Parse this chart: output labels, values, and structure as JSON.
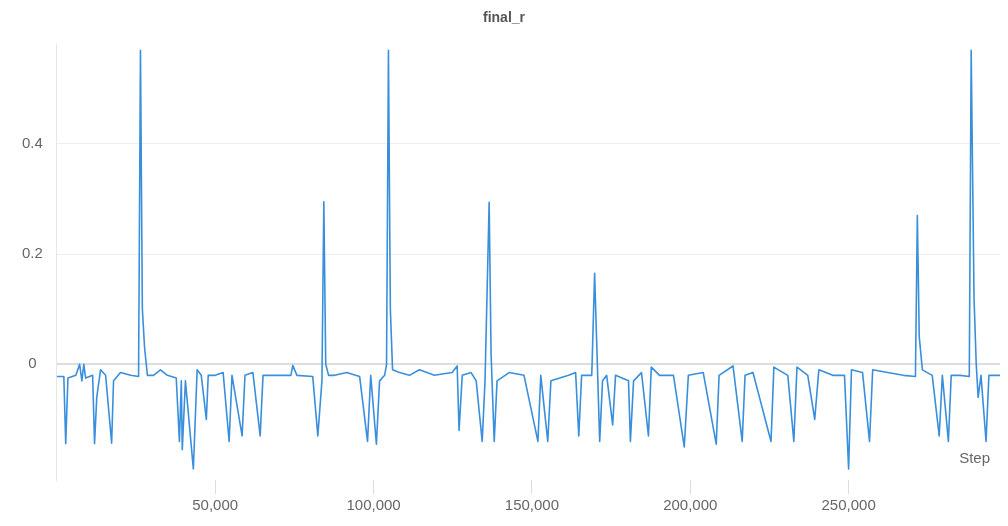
{
  "chart_data": {
    "type": "line",
    "title": "final_r",
    "xlabel": "Step",
    "x": [
      0,
      2200,
      2800,
      3500,
      6000,
      7200,
      7900,
      8500,
      9100,
      11300,
      11900,
      12600,
      13800,
      15400,
      17300,
      17900,
      20100,
      23300,
      25800,
      26400,
      27000,
      27700,
      28600,
      30500,
      32700,
      34900,
      37700,
      38700,
      39300,
      39600,
      40600,
      43100,
      44300,
      45600,
      47200,
      47800,
      50000,
      52500,
      54400,
      55300,
      58500,
      59400,
      61900,
      64200,
      65100,
      68900,
      73900,
      74500,
      75800,
      80800,
      82400,
      83700,
      84300,
      84900,
      85800,
      87700,
      91500,
      95600,
      98100,
      99100,
      100900,
      101900,
      103500,
      104100,
      104700,
      105300,
      106000,
      108200,
      111300,
      114500,
      119200,
      124800,
      126400,
      127000,
      128000,
      130800,
      132400,
      134300,
      135200,
      136500,
      137100,
      138100,
      139000,
      142800,
      147500,
      151900,
      152800,
      155000,
      156000,
      161600,
      163800,
      164800,
      165700,
      168900,
      169800,
      170400,
      171400,
      172300,
      173600,
      175500,
      176400,
      180500,
      181100,
      182100,
      184600,
      186800,
      187700,
      190300,
      194700,
      198100,
      199400,
      204100,
      208200,
      209100,
      213500,
      216400,
      217300,
      219800,
      225500,
      226400,
      230800,
      232700,
      233700,
      237100,
      239300,
      240600,
      245000,
      248700,
      250000,
      250900,
      254400,
      256600,
      257600,
      262300,
      267300,
      271100,
      271700,
      272300,
      273300,
      276400,
      278600,
      279600,
      281500,
      282400,
      285200,
      288100,
      288700,
      289600,
      290300,
      290900,
      291800,
      293400,
      294300,
      297800
    ],
    "series": [
      {
        "color": "#3a8fdc",
        "values": [
          -0.022,
          -0.022,
          -0.144,
          -0.025,
          -0.02,
          0.0,
          -0.03,
          0.0,
          -0.025,
          -0.02,
          -0.144,
          -0.06,
          -0.01,
          -0.02,
          -0.143,
          -0.03,
          -0.015,
          -0.02,
          -0.022,
          0.57,
          0.1,
          0.03,
          -0.02,
          -0.02,
          -0.01,
          -0.02,
          -0.025,
          -0.14,
          -0.03,
          -0.155,
          -0.03,
          -0.19,
          -0.01,
          -0.02,
          -0.1,
          -0.02,
          -0.02,
          -0.015,
          -0.14,
          -0.02,
          -0.13,
          -0.02,
          -0.015,
          -0.13,
          -0.02,
          -0.02,
          -0.02,
          -0.002,
          -0.02,
          -0.022,
          -0.13,
          -0.03,
          0.295,
          0.0,
          -0.02,
          -0.02,
          -0.015,
          -0.022,
          -0.14,
          -0.02,
          -0.145,
          -0.03,
          -0.02,
          0.0,
          0.57,
          0.1,
          -0.01,
          -0.015,
          -0.02,
          -0.01,
          -0.02,
          -0.015,
          -0.003,
          -0.12,
          -0.02,
          -0.015,
          -0.03,
          -0.14,
          -0.03,
          0.294,
          0.02,
          -0.14,
          -0.03,
          -0.015,
          -0.02,
          -0.14,
          -0.02,
          -0.14,
          -0.03,
          -0.02,
          -0.015,
          -0.13,
          -0.02,
          -0.02,
          0.165,
          0.05,
          -0.14,
          -0.03,
          -0.02,
          -0.11,
          -0.02,
          -0.03,
          -0.14,
          -0.03,
          -0.015,
          -0.13,
          -0.005,
          -0.02,
          -0.02,
          -0.15,
          -0.02,
          -0.015,
          -0.145,
          -0.02,
          -0.003,
          -0.14,
          -0.02,
          -0.015,
          -0.14,
          -0.005,
          -0.02,
          -0.14,
          -0.005,
          -0.02,
          -0.1,
          -0.01,
          -0.02,
          -0.02,
          -0.19,
          -0.01,
          -0.015,
          -0.14,
          -0.01,
          -0.015,
          -0.02,
          -0.022,
          0.27,
          0.05,
          -0.01,
          -0.02,
          -0.13,
          -0.02,
          -0.14,
          -0.02,
          -0.02,
          -0.022,
          0.57,
          0.12,
          0.0,
          -0.06,
          -0.02,
          -0.14,
          -0.02,
          -0.02
        ]
      }
    ],
    "xlim": [
      0,
      297800
    ],
    "ylim": [
      -0.21,
      0.58
    ],
    "xticks": [
      {
        "value": 50000,
        "label": "50,000"
      },
      {
        "value": 100000,
        "label": "100,000"
      },
      {
        "value": 150000,
        "label": "150,000"
      },
      {
        "value": 200000,
        "label": "200,000"
      },
      {
        "value": 250000,
        "label": "250,000"
      }
    ],
    "yticks": [
      0,
      0.2,
      0.4
    ],
    "grid": "y",
    "legend": false,
    "marker": "none",
    "line_style": "solid"
  }
}
